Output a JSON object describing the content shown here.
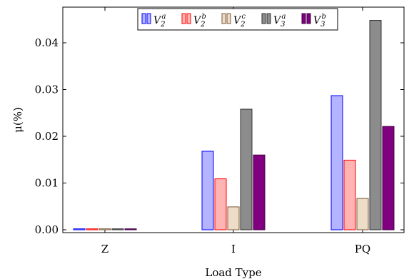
{
  "chart_data": {
    "type": "bar",
    "categories": [
      "Z",
      "I",
      "PQ"
    ],
    "xlabel": "Load Type",
    "ylabel": "μ(%)",
    "ylim": [
      0,
      0.046
    ],
    "yticks": [
      "0.00",
      "0.01",
      "0.02",
      "0.03",
      "0.04"
    ],
    "ytick_values": [
      0,
      0.01,
      0.02,
      0.03,
      0.04
    ],
    "legend_position": "top-right",
    "series": [
      {
        "name": "V2a",
        "base": "V",
        "sub": "2",
        "sup": "a",
        "fill": "#b3b3ff",
        "stroke": "#0000ff",
        "values": [
          0.0002,
          0.0168,
          0.0287
        ]
      },
      {
        "name": "V2b",
        "base": "V",
        "sub": "2",
        "sup": "b",
        "fill": "#ffb3b3",
        "stroke": "#ff0000",
        "values": [
          0.0002,
          0.0109,
          0.0149
        ]
      },
      {
        "name": "V2c",
        "base": "V",
        "sub": "2",
        "sup": "c",
        "fill": "#eddcc8",
        "stroke": "#7a5a3a",
        "values": [
          0.0002,
          0.0049,
          0.0067
        ]
      },
      {
        "name": "V3a",
        "base": "V",
        "sub": "3",
        "sup": "a",
        "fill": "#8c8c8c",
        "stroke": "#303030",
        "values": [
          0.0002,
          0.0258,
          0.0448
        ]
      },
      {
        "name": "V3b",
        "base": "V",
        "sub": "3",
        "sup": "b",
        "fill": "#800080",
        "stroke": "#400040",
        "values": [
          0.0002,
          0.016,
          0.0221
        ]
      }
    ]
  }
}
